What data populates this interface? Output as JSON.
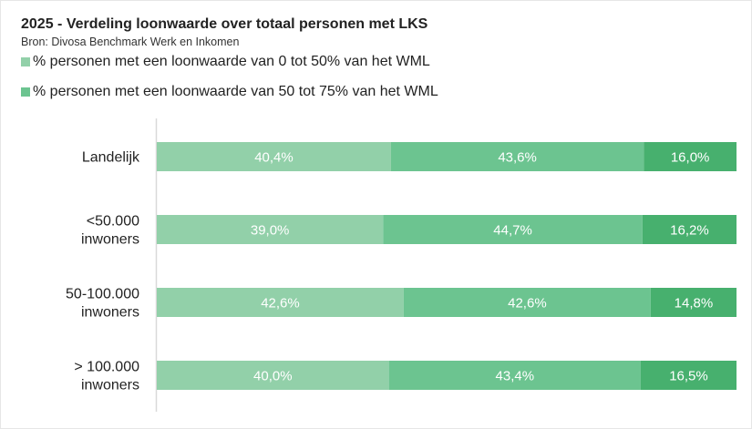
{
  "chart_data": {
    "type": "bar",
    "orientation": "horizontal",
    "stacked": true,
    "percent_stacked": true,
    "title": "2025 - Verdeling loonwaarde over totaal personen met LKS",
    "subtitle": "Bron: Divosa Benchmark Werk en Inkomen",
    "categories": [
      [
        "Landelijk"
      ],
      [
        "<50.000",
        "inwoners"
      ],
      [
        "50-100.000",
        "inwoners"
      ],
      [
        "> 100.000",
        "inwoners"
      ]
    ],
    "series": [
      {
        "name": "% personen met een loonwaarde van 0 tot 50% van het WML",
        "color": "#92d0a9",
        "values": [
          40.4,
          39.0,
          42.6,
          40.0
        ],
        "labels": [
          "40,4%",
          "39,0%",
          "42,6%",
          "40,0%"
        ]
      },
      {
        "name": "% personen met een loonwaarde van 50 tot 75% van het WML",
        "color": "#6cc490",
        "values": [
          43.6,
          44.7,
          42.6,
          43.4
        ],
        "labels": [
          "43,6%",
          "44,7%",
          "42,6%",
          "43,4%"
        ]
      },
      {
        "color": "#47b06e",
        "values": [
          16.0,
          16.2,
          14.8,
          16.5
        ],
        "labels": [
          "16,0%",
          "16,2%",
          "14,8%",
          "16,5%"
        ]
      }
    ],
    "xlim": [
      0,
      100
    ],
    "grid": false,
    "legend_position": "top-left"
  }
}
